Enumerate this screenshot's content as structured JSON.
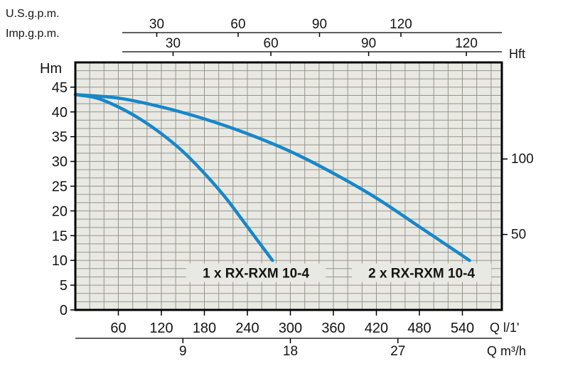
{
  "chart_data": {
    "type": "line",
    "axes": {
      "top_us": {
        "label": "U.S.g.p.m.",
        "ticks": [
          30,
          60,
          90,
          120
        ]
      },
      "top_imp": {
        "label": "Imp.g.p.m.",
        "ticks": [
          30,
          60,
          90,
          120
        ]
      },
      "left": {
        "label": "Hm",
        "ticks": [
          0,
          5,
          10,
          15,
          20,
          25,
          30,
          35,
          40,
          45
        ],
        "range": [
          0,
          50
        ]
      },
      "right": {
        "label": "Hft",
        "ticks": [
          50,
          100
        ]
      },
      "bottom_primary": {
        "label": "Q l/1'",
        "ticks": [
          60,
          120,
          180,
          240,
          300,
          360,
          420,
          480,
          540
        ],
        "range": [
          0,
          595
        ]
      },
      "bottom_secondary": {
        "label": "Q m³/h",
        "ticks": [
          9,
          18,
          27
        ]
      }
    },
    "curves": [
      {
        "name": "1 x RX-RXM 10-4",
        "label_q": 252,
        "label_h": 7.5,
        "points": [
          [
            0,
            43.5
          ],
          [
            30,
            42.8
          ],
          [
            60,
            41.0
          ],
          [
            90,
            38.6
          ],
          [
            120,
            35.6
          ],
          [
            150,
            32.0
          ],
          [
            180,
            27.6
          ],
          [
            210,
            22.6
          ],
          [
            240,
            16.8
          ],
          [
            275,
            10.0
          ]
        ]
      },
      {
        "name": "2 x RX-RXM 10-4",
        "label_q": 483,
        "label_h": 7.5,
        "points": [
          [
            0,
            43.5
          ],
          [
            60,
            42.8
          ],
          [
            120,
            41.0
          ],
          [
            180,
            38.6
          ],
          [
            240,
            35.6
          ],
          [
            300,
            32.0
          ],
          [
            360,
            27.6
          ],
          [
            420,
            22.6
          ],
          [
            480,
            16.8
          ],
          [
            550,
            10.0
          ]
        ]
      }
    ],
    "colors": {
      "curve": "#1787c9",
      "plot_bg": "#e9e9e3",
      "grid": "#95958c",
      "border": "#000000",
      "text": "#141414"
    },
    "grid": {
      "v_step_lmin": 20,
      "h_divisions": 30
    }
  }
}
